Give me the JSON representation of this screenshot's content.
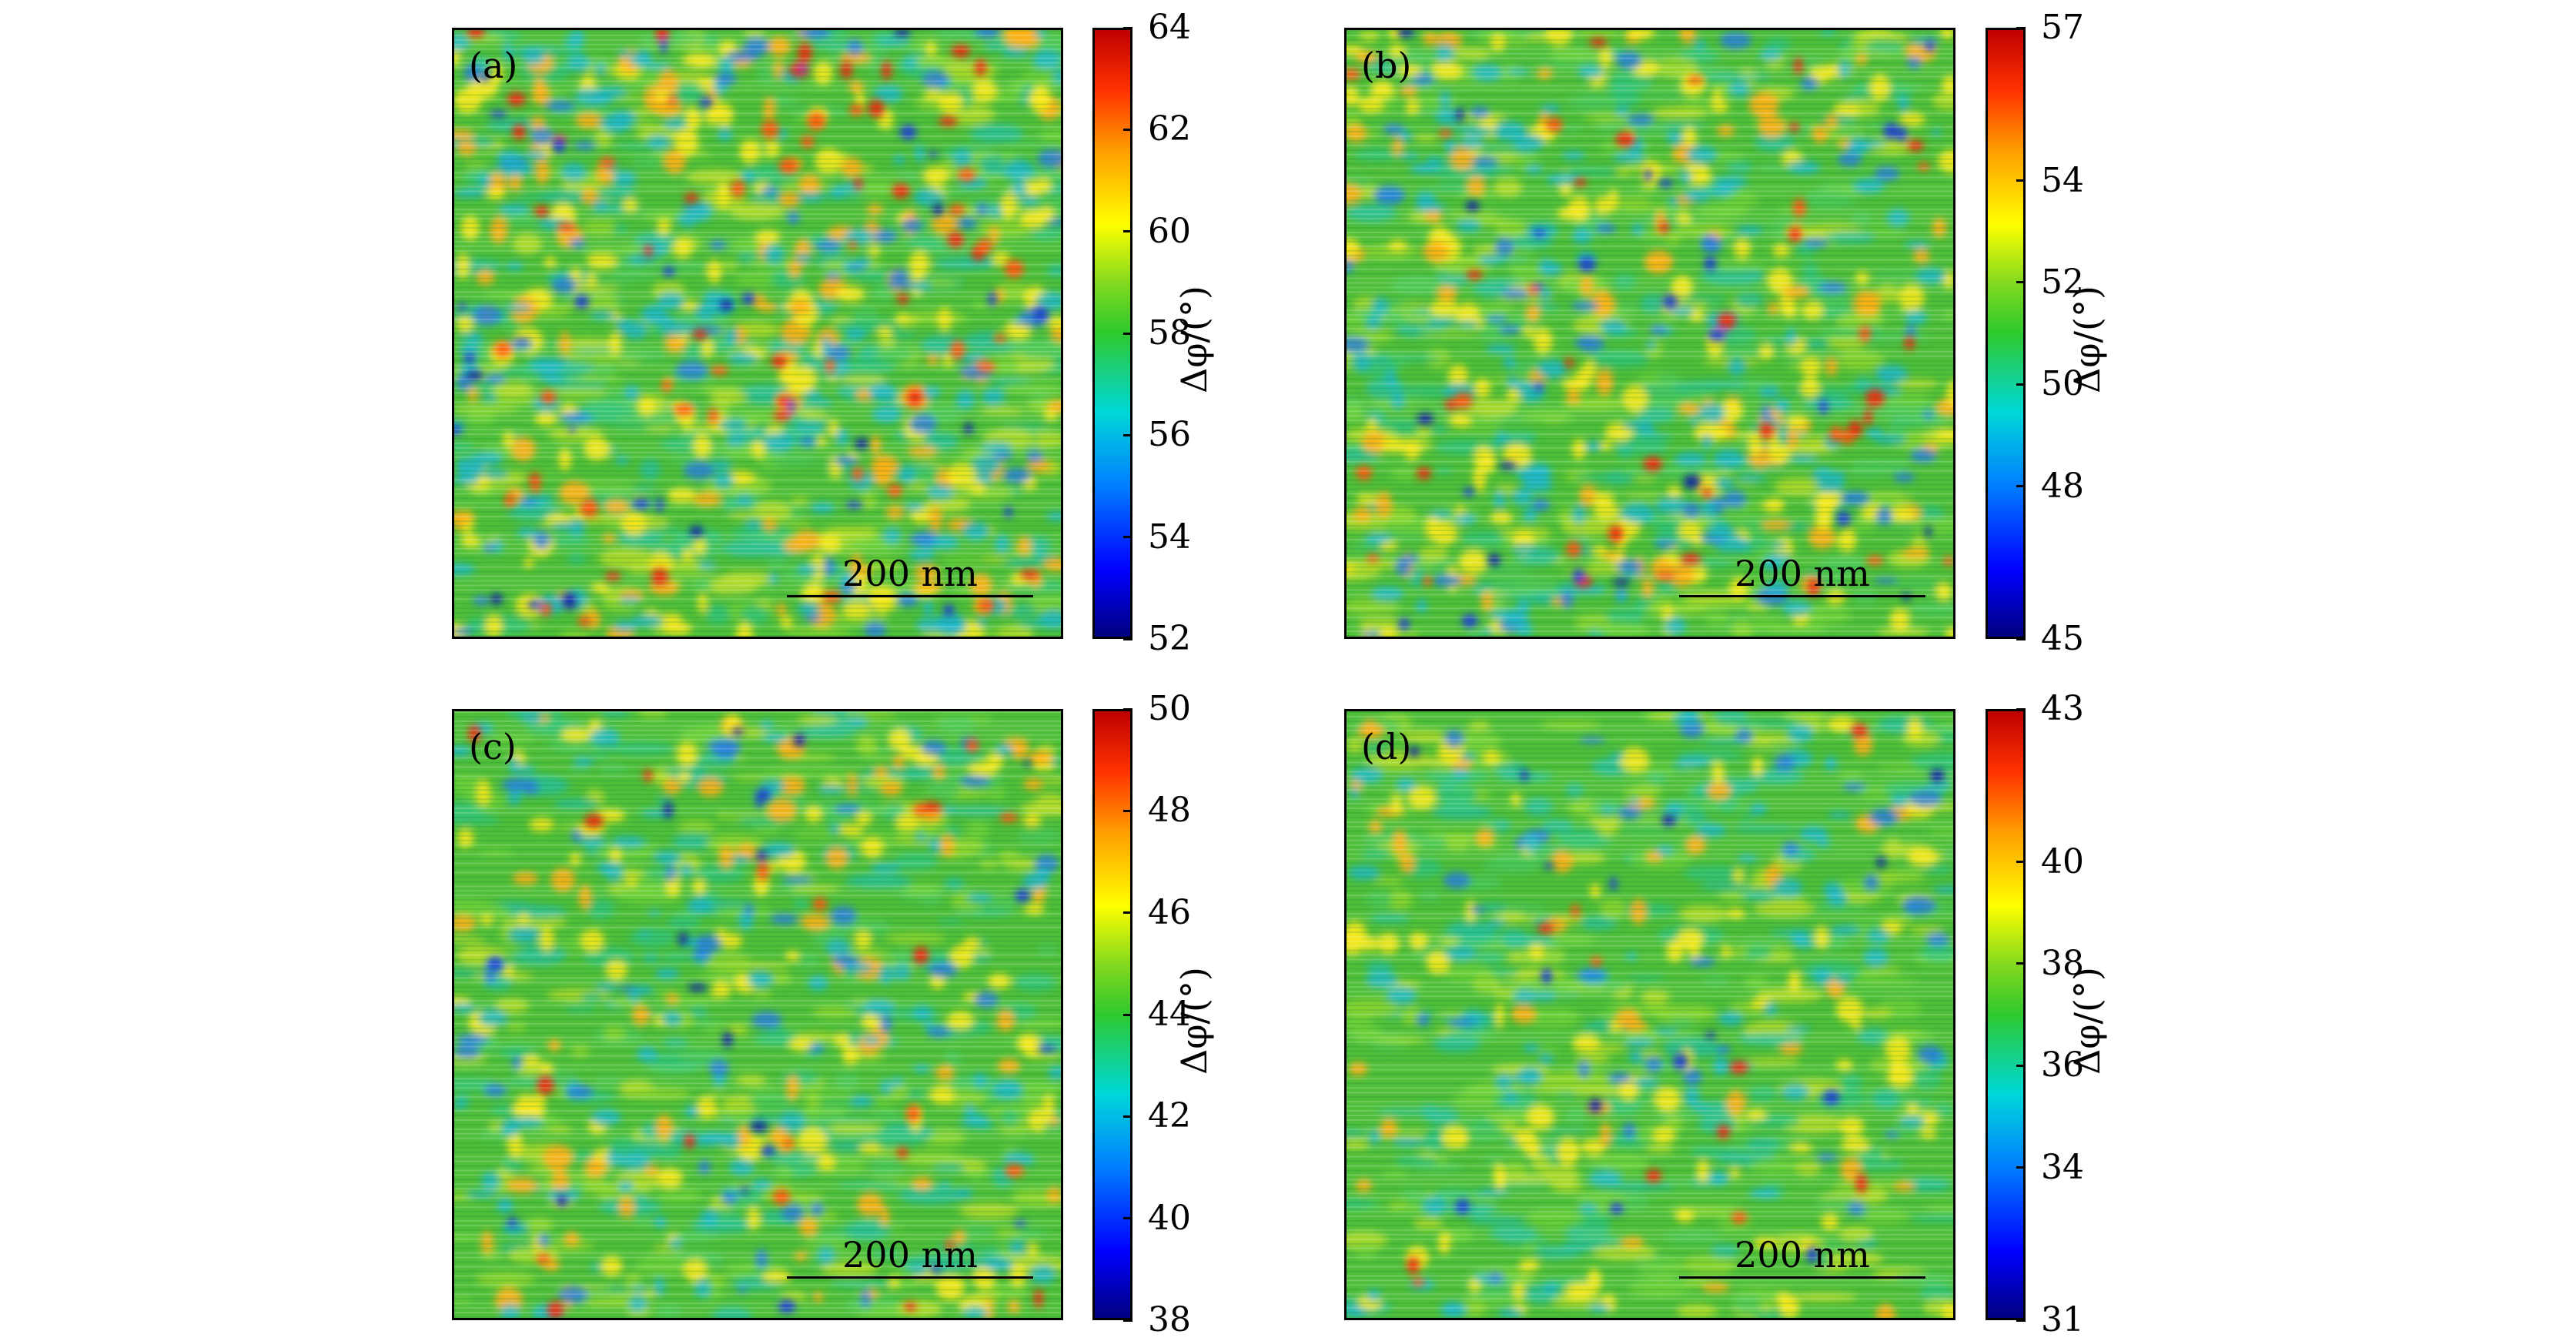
{
  "figure": {
    "panels": [
      {
        "label": "(a)",
        "scalebar": "200 nm",
        "colorbar": {
          "ticks": [
            "64",
            "62",
            "60",
            "58",
            "56",
            "54",
            "52"
          ],
          "tick_values": [
            64,
            62,
            60,
            58,
            56,
            54,
            52
          ],
          "min": 52,
          "max": 64,
          "axis_label": "Δφ/(°)"
        },
        "seed": 11
      },
      {
        "label": "(b)",
        "scalebar": "200 nm",
        "colorbar": {
          "ticks": [
            "57",
            "54",
            "52",
            "50",
            "48",
            "45"
          ],
          "tick_values": [
            57,
            54,
            52,
            50,
            48,
            45
          ],
          "min": 45,
          "max": 57,
          "axis_label": "Δφ/(°)"
        },
        "seed": 23
      },
      {
        "label": "(c)",
        "scalebar": "200 nm",
        "colorbar": {
          "ticks": [
            "50",
            "48",
            "46",
            "44",
            "42",
            "40",
            "38"
          ],
          "tick_values": [
            50,
            48,
            46,
            44,
            42,
            40,
            38
          ],
          "min": 38,
          "max": 50,
          "axis_label": "Δφ/(°)"
        },
        "seed": 37
      },
      {
        "label": "(d)",
        "scalebar": "200 nm",
        "colorbar": {
          "ticks": [
            "43",
            "40",
            "38",
            "36",
            "34",
            "31"
          ],
          "tick_values": [
            43,
            40,
            38,
            36,
            34,
            31
          ],
          "min": 31,
          "max": 43,
          "axis_label": "Δφ/(°)"
        },
        "seed": 53
      }
    ]
  }
}
